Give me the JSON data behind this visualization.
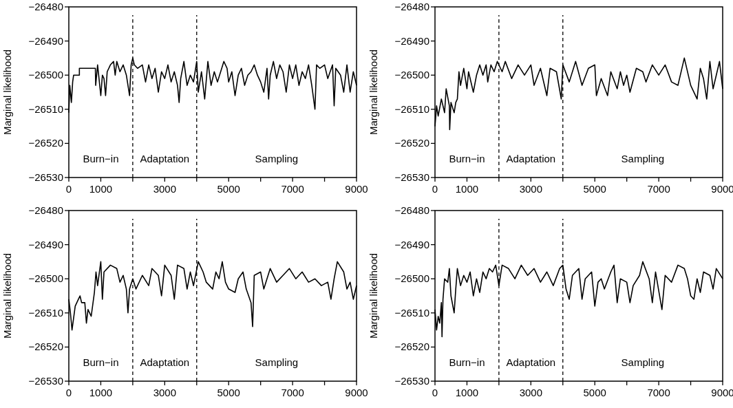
{
  "chart_data": [
    {
      "type": "line",
      "ylabel": "Marginal likelihood",
      "xlim": [
        0,
        9000
      ],
      "ylim": [
        -26530,
        -26480
      ],
      "xticks": [
        0,
        1000,
        {
          "value": 2000,
          "label": null
        },
        3000,
        {
          "value": 4000,
          "label": null
        },
        5000,
        {
          "value": 6000,
          "label": null
        },
        7000,
        {
          "value": 8000,
          "label": null
        },
        9000
      ],
      "yticks": [
        -26530,
        -26520,
        -26510,
        -26500,
        -26490,
        -26480
      ],
      "grid": false,
      "line_style": "solid",
      "ref_lines": [
        {
          "axis": "x",
          "value": 2000,
          "line_style": "dashed",
          "color": "#000000"
        },
        {
          "axis": "x",
          "value": 4000,
          "line_style": "dashed",
          "color": "#000000"
        }
      ],
      "annotations": [
        "Burn−in",
        "Adaptation",
        "Sampling"
      ],
      "x": [
        0,
        30,
        80,
        120,
        150,
        330,
        330,
        830,
        840,
        900,
        1000,
        1050,
        1100,
        1150,
        1200,
        1300,
        1400,
        1450,
        1500,
        1600,
        1700,
        1800,
        1900,
        1950,
        2000,
        2050,
        2150,
        2300,
        2400,
        2500,
        2600,
        2700,
        2800,
        2900,
        3000,
        3100,
        3200,
        3300,
        3400,
        3450,
        3500,
        3600,
        3700,
        3800,
        3900,
        4000,
        4050,
        4150,
        4250,
        4350,
        4450,
        4550,
        4650,
        4750,
        4850,
        4950,
        5000,
        5100,
        5200,
        5300,
        5400,
        5500,
        5600,
        5700,
        5800,
        5900,
        6000,
        6100,
        6200,
        6250,
        6300,
        6400,
        6500,
        6600,
        6700,
        6800,
        6900,
        7000,
        7100,
        7200,
        7300,
        7400,
        7500,
        7600,
        7700,
        7750,
        7850,
        8000,
        8100,
        8250,
        8300,
        8350,
        8500,
        8600,
        8700,
        8800,
        8900,
        9000
      ],
      "series": [
        {
          "color": "#000000",
          "values": [
            -26511,
            -26503,
            -26508,
            -26502,
            -26500,
            -26500,
            -26498,
            -26498,
            -26503,
            -26497,
            -26506,
            -26500,
            -26501,
            -26506,
            -26499,
            -26497,
            -26496,
            -26500,
            -26496,
            -26499,
            -26497,
            -26500,
            -26506,
            -26497,
            -26495,
            -26497,
            -26498,
            -26497,
            -26502,
            -26497,
            -26501,
            -26498,
            -26505,
            -26499,
            -26501,
            -26497,
            -26502,
            -26499,
            -26503,
            -26508,
            -26501,
            -26496,
            -26503,
            -26500,
            -26502,
            -26496,
            -26505,
            -26499,
            -26507,
            -26496,
            -26503,
            -26499,
            -26502,
            -26499,
            -26496,
            -26498,
            -26502,
            -26499,
            -26506,
            -26500,
            -26498,
            -26503,
            -26500,
            -26499,
            -26497,
            -26500,
            -26502,
            -26505,
            -26498,
            -26507,
            -26500,
            -26496,
            -26501,
            -26497,
            -26499,
            -26505,
            -26497,
            -26501,
            -26497,
            -26503,
            -26499,
            -26501,
            -26497,
            -26503,
            -26510,
            -26497,
            -26498,
            -26497,
            -26501,
            -26497,
            -26509,
            -26498,
            -26500,
            -26505,
            -26497,
            -26505,
            -26499,
            -26503
          ]
        }
      ]
    },
    {
      "type": "line",
      "ylabel": "Marginal likelihood",
      "xlim": [
        0,
        9000
      ],
      "ylim": [
        -26530,
        -26480
      ],
      "xticks": [
        0,
        1000,
        {
          "value": 2000,
          "label": null
        },
        3000,
        {
          "value": 4000,
          "label": null
        },
        5000,
        {
          "value": 6000,
          "label": null
        },
        7000,
        {
          "value": 8000,
          "label": null
        },
        9000
      ],
      "yticks": [
        -26530,
        -26520,
        -26510,
        -26500,
        -26490,
        -26480
      ],
      "grid": false,
      "line_style": "solid",
      "ref_lines": [
        {
          "axis": "x",
          "value": 2000,
          "line_style": "dashed",
          "color": "#000000"
        },
        {
          "axis": "x",
          "value": 4000,
          "line_style": "dashed",
          "color": "#000000"
        }
      ],
      "annotations": [
        "Burn−in",
        "Adaptation",
        "Sampling"
      ],
      "x": [
        0,
        50,
        100,
        200,
        300,
        350,
        450,
        460,
        500,
        600,
        650,
        700,
        750,
        800,
        900,
        1000,
        1050,
        1200,
        1300,
        1400,
        1500,
        1600,
        1650,
        1750,
        1850,
        1950,
        2100,
        2200,
        2400,
        2600,
        2800,
        3000,
        3100,
        3300,
        3500,
        3600,
        3800,
        3950,
        4000,
        4200,
        4400,
        4600,
        4800,
        5000,
        5050,
        5200,
        5400,
        5500,
        5700,
        5800,
        5900,
        6000,
        6100,
        6300,
        6500,
        6600,
        6800,
        7000,
        7200,
        7400,
        7600,
        7800,
        8000,
        8200,
        8300,
        8400,
        8500,
        8600,
        8700,
        8800,
        8900,
        9000
      ],
      "series": [
        {
          "color": "#000000",
          "values": [
            -26515,
            -26509,
            -26512,
            -26507,
            -26511,
            -26504,
            -26509,
            -26516,
            -26508,
            -26511,
            -26508,
            -26507,
            -26499,
            -26503,
            -26498,
            -26504,
            -26499,
            -26505,
            -26500,
            -26497,
            -26500,
            -26497,
            -26502,
            -26497,
            -26499,
            -26496,
            -26499,
            -26496,
            -26501,
            -26497,
            -26500,
            -26497,
            -26503,
            -26498,
            -26506,
            -26498,
            -26499,
            -26507,
            -26497,
            -26502,
            -26496,
            -26503,
            -26498,
            -26497,
            -26506,
            -26501,
            -26506,
            -26499,
            -26504,
            -26499,
            -26503,
            -26500,
            -26505,
            -26498,
            -26499,
            -26502,
            -26497,
            -26500,
            -26497,
            -26502,
            -26503,
            -26495,
            -26503,
            -26507,
            -26498,
            -26501,
            -26507,
            -26496,
            -26504,
            -26500,
            -26496,
            -26504
          ]
        }
      ]
    },
    {
      "type": "line",
      "ylabel": "Marginal likelihood",
      "xlim": [
        0,
        9000
      ],
      "ylim": [
        -26530,
        -26480
      ],
      "xticks": [
        0,
        1000,
        {
          "value": 2000,
          "label": null
        },
        3000,
        {
          "value": 4000,
          "label": null
        },
        5000,
        {
          "value": 6000,
          "label": null
        },
        7000,
        {
          "value": 8000,
          "label": null
        },
        9000
      ],
      "yticks": [
        -26530,
        -26520,
        -26510,
        -26500,
        -26490,
        -26480
      ],
      "grid": false,
      "line_style": "solid",
      "ref_lines": [
        {
          "axis": "x",
          "value": 2000,
          "line_style": "dashed",
          "color": "#000000"
        },
        {
          "axis": "x",
          "value": 4000,
          "line_style": "dashed",
          "color": "#000000"
        }
      ],
      "annotations": [
        "Burn−in",
        "Adaptation",
        "Sampling"
      ],
      "x": [
        0,
        50,
        100,
        200,
        300,
        350,
        400,
        500,
        550,
        600,
        700,
        800,
        850,
        900,
        1000,
        1050,
        1100,
        1300,
        1500,
        1600,
        1700,
        1800,
        1850,
        1900,
        2000,
        2100,
        2300,
        2500,
        2600,
        2800,
        2900,
        3000,
        3200,
        3300,
        3400,
        3600,
        3700,
        3800,
        3900,
        4050,
        4200,
        4300,
        4500,
        4600,
        4700,
        4800,
        4900,
        5000,
        5200,
        5300,
        5450,
        5550,
        5700,
        5750,
        5800,
        6000,
        6100,
        6300,
        6500,
        6700,
        6900,
        7100,
        7300,
        7500,
        7700,
        7900,
        8100,
        8200,
        8300,
        8400,
        8600,
        8700,
        8800,
        8900,
        9000
      ],
      "series": [
        {
          "color": "#000000",
          "values": [
            -26506,
            -26510,
            -26515,
            -26508,
            -26506,
            -26505,
            -26507,
            -26507,
            -26513,
            -26509,
            -26511,
            -26504,
            -26498,
            -26502,
            -26495,
            -26506,
            -26498,
            -26496,
            -26497,
            -26501,
            -26499,
            -26503,
            -26510,
            -26503,
            -26500,
            -26503,
            -26499,
            -26502,
            -26497,
            -26499,
            -26505,
            -26496,
            -26499,
            -26506,
            -26496,
            -26497,
            -26503,
            -26498,
            -26502,
            -26495,
            -26498,
            -26501,
            -26503,
            -26498,
            -26500,
            -26495,
            -26501,
            -26503,
            -26504,
            -26500,
            -26498,
            -26503,
            -26507,
            -26514,
            -26499,
            -26498,
            -26503,
            -26497,
            -26501,
            -26499,
            -26497,
            -26500,
            -26498,
            -26501,
            -26500,
            -26502,
            -26501,
            -26506,
            -26500,
            -26495,
            -26498,
            -26503,
            -26501,
            -26506,
            -26502
          ]
        }
      ]
    },
    {
      "type": "line",
      "ylabel": "Marginal likelihood",
      "xlim": [
        0,
        9000
      ],
      "ylim": [
        -26530,
        -26480
      ],
      "xticks": [
        0,
        1000,
        {
          "value": 2000,
          "label": null
        },
        3000,
        {
          "value": 4000,
          "label": null
        },
        5000,
        {
          "value": 6000,
          "label": null
        },
        7000,
        {
          "value": 8000,
          "label": null
        },
        9000
      ],
      "yticks": [
        -26530,
        -26520,
        -26510,
        -26500,
        -26490,
        -26480
      ],
      "grid": false,
      "line_style": "solid",
      "ref_lines": [
        {
          "axis": "x",
          "value": 2000,
          "line_style": "dashed",
          "color": "#000000"
        },
        {
          "axis": "x",
          "value": 4000,
          "line_style": "dashed",
          "color": "#000000"
        }
      ],
      "annotations": [
        "Burn−in",
        "Adaptation",
        "Sampling"
      ],
      "x": [
        0,
        50,
        100,
        150,
        200,
        220,
        250,
        300,
        400,
        450,
        500,
        600,
        650,
        700,
        800,
        900,
        1000,
        1100,
        1200,
        1300,
        1400,
        1500,
        1600,
        1700,
        1800,
        1900,
        2000,
        2100,
        2300,
        2500,
        2700,
        2900,
        3100,
        3300,
        3500,
        3700,
        3900,
        4000,
        4100,
        4200,
        4300,
        4500,
        4600,
        4700,
        4900,
        5000,
        5100,
        5200,
        5300,
        5500,
        5600,
        5700,
        5800,
        6000,
        6100,
        6200,
        6400,
        6500,
        6700,
        6800,
        6900,
        7100,
        7200,
        7400,
        7600,
        7800,
        7900,
        8000,
        8100,
        8200,
        8300,
        8400,
        8600,
        8700,
        8800,
        9000
      ],
      "series": [
        {
          "color": "#000000",
          "values": [
            -26509,
            -26515,
            -26511,
            -26513,
            -26507,
            -26517,
            -26506,
            -26500,
            -26501,
            -26497,
            -26505,
            -26510,
            -26503,
            -26497,
            -26502,
            -26499,
            -26501,
            -26498,
            -26505,
            -26500,
            -26504,
            -26498,
            -26500,
            -26497,
            -26498,
            -26496,
            -26502,
            -26496,
            -26497,
            -26500,
            -26496,
            -26499,
            -26497,
            -26501,
            -26498,
            -26502,
            -26497,
            -26496,
            -26503,
            -26506,
            -26499,
            -26497,
            -26506,
            -26500,
            -26498,
            -26508,
            -26501,
            -26500,
            -26503,
            -26498,
            -26496,
            -26507,
            -26500,
            -26501,
            -26507,
            -26502,
            -26499,
            -26495,
            -26500,
            -26507,
            -26498,
            -26509,
            -26499,
            -26501,
            -26496,
            -26497,
            -26500,
            -26505,
            -26506,
            -26500,
            -26504,
            -26498,
            -26499,
            -26503,
            -26497,
            -26500
          ]
        }
      ]
    }
  ]
}
